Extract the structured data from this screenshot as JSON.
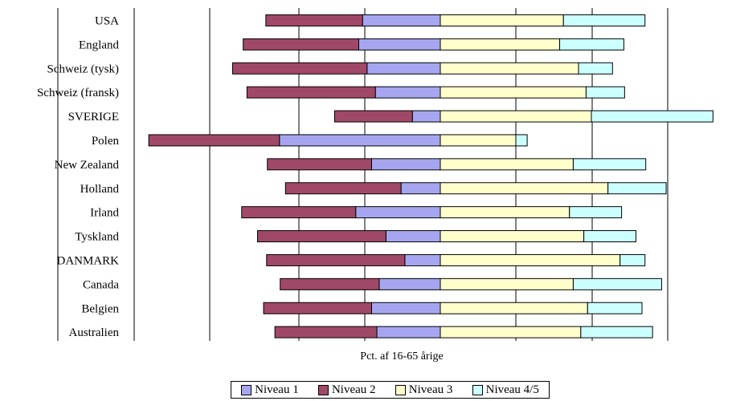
{
  "chart_data": {
    "type": "bar",
    "orientation": "horizontal",
    "stacking": "diverging",
    "xlabel": "Pct. af 16-65 årige",
    "xlim": [
      -39,
      36
    ],
    "grid": true,
    "legend_position": "bottom",
    "categories": [
      "USA",
      "England",
      "Schweiz (tysk)",
      "Schweiz (fransk)",
      "SVERIGE",
      "Polen",
      "New Zealand",
      "Holland",
      "Irland",
      "Tyskland",
      "DANMARK",
      "Canada",
      "Belgien",
      "Australien"
    ],
    "series": [
      {
        "name": "Niveau 1",
        "color": "#a6a6f0",
        "values": [
          -10.3,
          -10.8,
          -9.7,
          -8.6,
          -3.7,
          -21.3,
          -9.1,
          -5.2,
          -11.2,
          -7.2,
          -4.7,
          -8.1,
          -9.1,
          -8.4
        ]
      },
      {
        "name": "Niveau 2",
        "color": "#a04868",
        "values": [
          -12.8,
          -15.3,
          -17.8,
          -17.0,
          -10.3,
          -17.3,
          -13.8,
          -15.3,
          -15.1,
          -17.0,
          -18.3,
          -13.1,
          -14.3,
          -13.5
        ]
      },
      {
        "name": "Niveau 3",
        "color": "#ffffcc",
        "values": [
          16.3,
          15.8,
          18.3,
          19.3,
          20.0,
          10.0,
          17.6,
          22.2,
          17.1,
          19.0,
          23.8,
          17.6,
          19.5,
          18.6
        ]
      },
      {
        "name": "Niveau 4/5",
        "color": "#ccffff",
        "values": [
          10.8,
          8.5,
          4.5,
          5.1,
          16.1,
          1.5,
          9.6,
          7.7,
          6.9,
          6.9,
          3.3,
          11.7,
          7.2,
          9.5
        ]
      }
    ]
  }
}
